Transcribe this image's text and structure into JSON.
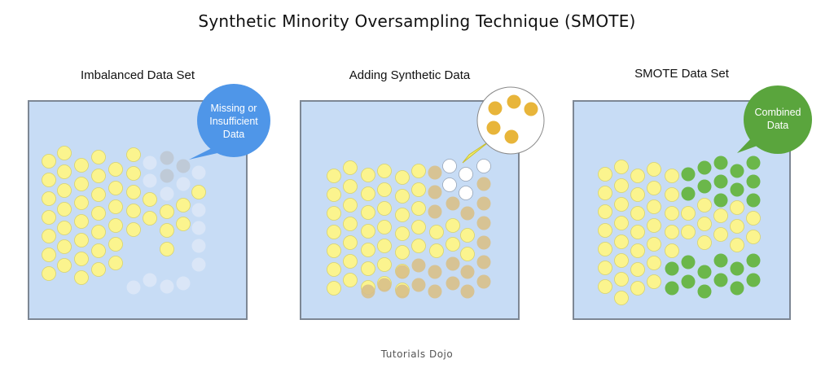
{
  "title": "Synthetic Minority Oversampling Technique (SMOTE)",
  "panels": [
    {
      "label": "Imbalanced Data Set",
      "callout": [
        "Missing or",
        "Insufficient",
        "Data"
      ]
    },
    {
      "label": "Adding Synthetic Data"
    },
    {
      "label": "SMOTE Data Set",
      "callout": [
        "Combined",
        "Data"
      ]
    }
  ],
  "footer": "Tutorials Dojo",
  "colors": {
    "panel_bg": "#c7dcf5",
    "majority": "#fbf48e",
    "missing": "#dde8f7",
    "synthetic": "#d8c08a",
    "synthetic_popup": "#e8b53a",
    "combined": "#6bb74a",
    "callout_missing": "#4f96e8",
    "callout_combined": "#5aa53d"
  }
}
